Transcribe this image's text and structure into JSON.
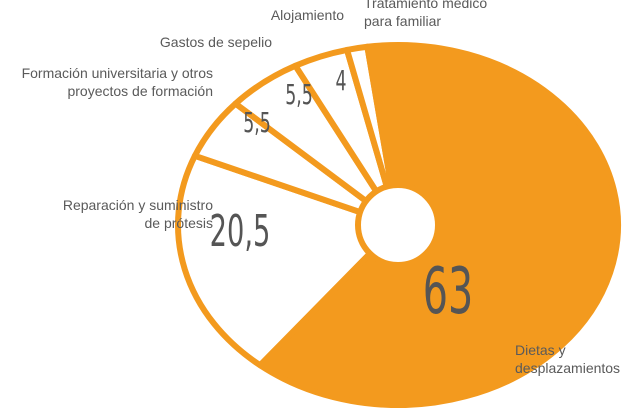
{
  "chart_data": {
    "type": "pie",
    "categories": [
      "Dietas y\ndesplazamientos",
      "Reparación y suministro\nde prótesis",
      "Formación universitaria y otros\nproyectos de formación",
      "Gastos de sepelio",
      "Alojamiento",
      "Tratamiento médico\npara familiar"
    ],
    "values": [
      63,
      20.5,
      5.5,
      5.5,
      4,
      1.5
    ],
    "value_labels": [
      "63",
      "20,5",
      "5,5",
      "5,5",
      "4",
      null
    ],
    "colors": [
      "#f39a1e",
      "#ffffff",
      "#ffffff",
      "#ffffff",
      "#ffffff",
      "#ffffff"
    ],
    "stroke": "#f39a1e"
  }
}
